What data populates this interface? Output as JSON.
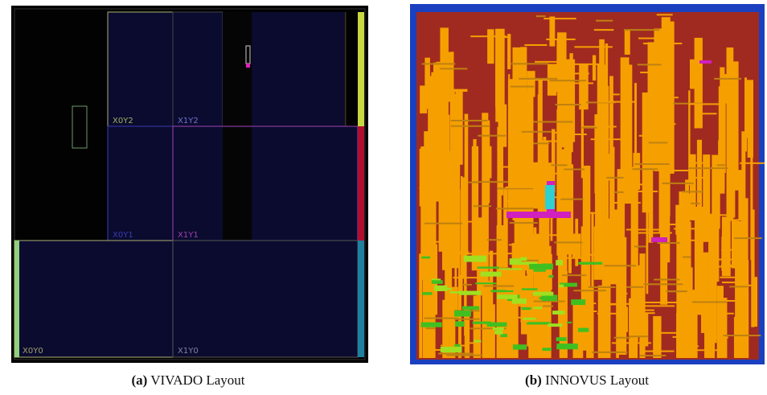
{
  "panels": [
    {
      "label": "(a)",
      "caption": "VIVADO Layout",
      "regions": [
        "X0Y2",
        "X1Y2",
        "X0Y1",
        "X1Y1",
        "X0Y0",
        "X1Y0"
      ]
    },
    {
      "label": "(b)",
      "caption": "INNOVUS Layout"
    }
  ]
}
